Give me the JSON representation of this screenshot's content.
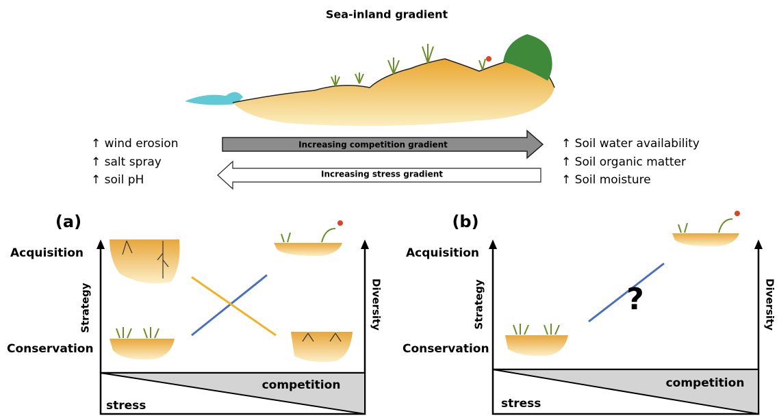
{
  "title": "Sea-inland gradient",
  "left_factors": [
    "↑ wind erosion",
    "↑ salt spray",
    "↑ soil pH"
  ],
  "right_factors": [
    "↑ Soil water availability",
    "↑ Soil organic matter",
    "↑ Soil moisture"
  ],
  "arrows": {
    "competition": "Increasing competition gradient",
    "stress": "Increasing stress gradient"
  },
  "panels": [
    {
      "label": "(a)",
      "y_top": "Acquisition",
      "y_bottom": "Conservation",
      "left_axis": "Strategy",
      "right_axis": "Diversity",
      "wedge_top": "competition",
      "wedge_bottom": "stress"
    },
    {
      "label": "(b)",
      "y_top": "Acquisition",
      "y_bottom": "Conservation",
      "left_axis": "Strategy",
      "right_axis": "Diversity",
      "wedge_top": "competition",
      "wedge_bottom": "stress",
      "unknown": "?"
    }
  ]
}
